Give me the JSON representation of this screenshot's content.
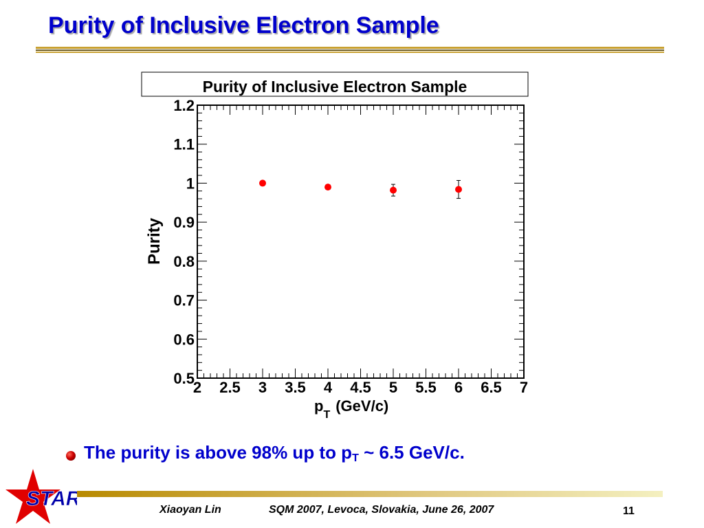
{
  "slide": {
    "title": "Purity of Inclusive Electron Sample"
  },
  "chart_data": {
    "type": "scatter",
    "title": "Purity of Inclusive Electron Sample",
    "xlabel_main": "p",
    "xlabel_sub": "T",
    "xlabel_units": "(GeV/c)",
    "ylabel": "Purity",
    "xlim": [
      2,
      7
    ],
    "ylim": [
      0.5,
      1.2
    ],
    "x_ticks": [
      "2",
      "2.5",
      "3",
      "3.5",
      "4",
      "4.5",
      "5",
      "5.5",
      "6",
      "6.5",
      "7"
    ],
    "y_ticks": [
      "0.5",
      "0.6",
      "0.7",
      "0.8",
      "0.9",
      "1",
      "1.1",
      "1.2"
    ],
    "grid": false,
    "series": [
      {
        "x": [
          3,
          4,
          5,
          6
        ],
        "y": [
          1.0,
          0.99,
          0.982,
          0.984
        ],
        "yerr": [
          0.003,
          0.004,
          0.015,
          0.023
        ],
        "color": "#ff0000"
      }
    ]
  },
  "bullet": {
    "text_main": "The purity is above 98% up to p",
    "text_sub": "T",
    "text_tail": " ~ 6.5 GeV/c."
  },
  "footer": {
    "author": "Xiaoyan Lin",
    "conference": "SQM 2007, Levoca, Slovakia, June 26, 2007",
    "page": "11",
    "logo_text": "STAR"
  },
  "colors": {
    "title": "#0000cc",
    "rule": "#c8a030",
    "marker": "#ff0000",
    "logo_star": "#e00000",
    "logo_text": "#0000aa"
  }
}
